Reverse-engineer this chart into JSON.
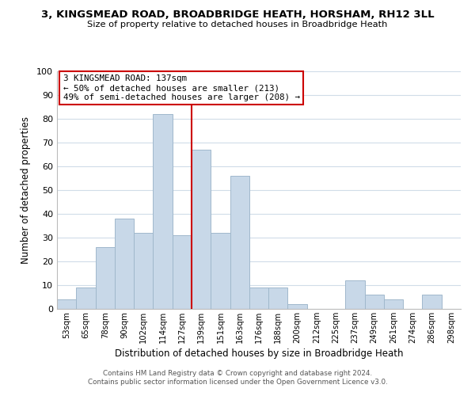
{
  "title1": "3, KINGSMEAD ROAD, BROADBRIDGE HEATH, HORSHAM, RH12 3LL",
  "title2": "Size of property relative to detached houses in Broadbridge Heath",
  "xlabel": "Distribution of detached houses by size in Broadbridge Heath",
  "ylabel": "Number of detached properties",
  "footnote1": "Contains HM Land Registry data © Crown copyright and database right 2024.",
  "footnote2": "Contains public sector information licensed under the Open Government Licence v3.0.",
  "bar_labels": [
    "53sqm",
    "65sqm",
    "78sqm",
    "90sqm",
    "102sqm",
    "114sqm",
    "127sqm",
    "139sqm",
    "151sqm",
    "163sqm",
    "176sqm",
    "188sqm",
    "200sqm",
    "212sqm",
    "225sqm",
    "237sqm",
    "249sqm",
    "261sqm",
    "274sqm",
    "286sqm",
    "298sqm"
  ],
  "bar_values": [
    4,
    9,
    26,
    38,
    32,
    82,
    31,
    67,
    32,
    56,
    9,
    9,
    2,
    0,
    0,
    12,
    6,
    4,
    0,
    6,
    0
  ],
  "bar_color": "#c8d8e8",
  "bar_edge_color": "#a0b8cc",
  "grid_color": "#d0dce8",
  "vline_color": "#cc0000",
  "annotation_title": "3 KINGSMEAD ROAD: 137sqm",
  "annotation_line1": "← 50% of detached houses are smaller (213)",
  "annotation_line2": "49% of semi-detached houses are larger (208) →",
  "annotation_box_edge": "#cc0000",
  "ylim": [
    0,
    100
  ],
  "yticks": [
    0,
    10,
    20,
    30,
    40,
    50,
    60,
    70,
    80,
    90,
    100
  ]
}
